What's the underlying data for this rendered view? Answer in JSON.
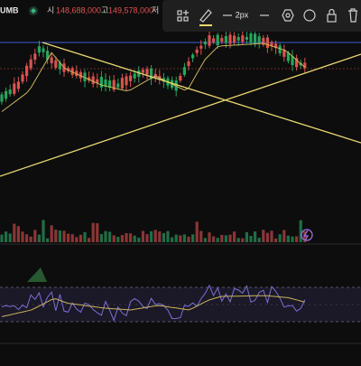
{
  "header": {
    "symbol": "UMB",
    "open_label": "시",
    "open": "148,688,000",
    "high_label": "고",
    "high": "149,578,000",
    "low_label": "저"
  },
  "toolbar": {
    "stroke_width": "2px"
  }
}
